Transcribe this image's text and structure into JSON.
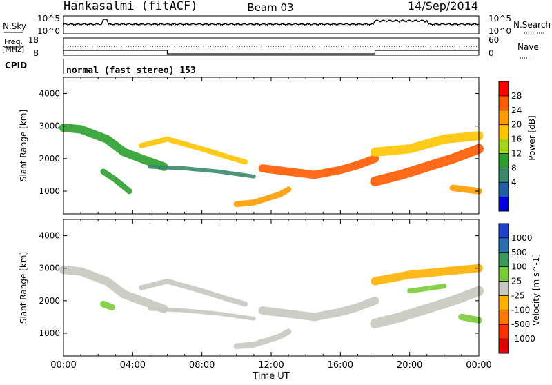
{
  "header": {
    "station": "Hankasalmi (fitACF)",
    "beam": "Beam 03",
    "date": "14/Sep/2014"
  },
  "top_panels": {
    "nsky_label": "N.Sky",
    "nsearch_label": "N.Search",
    "noise_ticks_left": [
      "10^5",
      "10^0"
    ],
    "noise_ticks_right": [
      "10^5",
      "10^0"
    ],
    "freq_label_line1": "Freq.",
    "freq_label_line2": "[MHz]",
    "freq_ticks": [
      "18",
      "8"
    ],
    "nave_label": "Nave",
    "nave_ticks": [
      "60",
      "0"
    ],
    "cpid_label": "CPID",
    "cpid_text": "normal (fast stereo) 153"
  },
  "x_axis": {
    "title": "Time UT",
    "ticks": [
      "00:00",
      "04:00",
      "08:00",
      "12:00",
      "16:00",
      "20:00",
      "00:00"
    ]
  },
  "chart_data": [
    {
      "type": "heatmap",
      "title": "Power",
      "ylabel": "Slant Range [km]",
      "xlabel": "Time UT",
      "xlim_hours": [
        0,
        24
      ],
      "ylim": [
        300,
        4500
      ],
      "yticks": [
        "4000",
        "3000",
        "2000",
        "1000"
      ],
      "colorbar": {
        "label": "Power [dB]",
        "ticks": [
          "28",
          "24",
          "20",
          "16",
          "12",
          "8",
          "4"
        ],
        "colors": [
          "#ff0000",
          "#ff5a00",
          "#ff9b00",
          "#ffc400",
          "#a6d41a",
          "#2ca02c",
          "#3a8a6a",
          "#1f5fa8",
          "#0000e0"
        ]
      },
      "bands": [
        {
          "points": [
            [
              0.0,
              2950
            ],
            [
              1.0,
              2900
            ],
            [
              2.5,
              2600
            ],
            [
              3.5,
              2200
            ],
            [
              4.5,
              2000
            ],
            [
              5.8,
              1750
            ]
          ],
          "width": 260,
          "value": 12
        },
        {
          "points": [
            [
              2.3,
              1600
            ],
            [
              3.0,
              1350
            ],
            [
              3.8,
              1000
            ]
          ],
          "width": 180,
          "value": 14
        },
        {
          "points": [
            [
              4.5,
              2400
            ],
            [
              6.0,
              2600
            ],
            [
              8.0,
              2300
            ],
            [
              9.5,
              2050
            ],
            [
              10.5,
              1900
            ]
          ],
          "width": 160,
          "value": 18
        },
        {
          "points": [
            [
              5.0,
              1750
            ],
            [
              7.0,
              1700
            ],
            [
              9.0,
              1600
            ],
            [
              11.0,
              1450
            ]
          ],
          "width": 120,
          "value": 10
        },
        {
          "points": [
            [
              10.0,
              600
            ],
            [
              11.0,
              650
            ],
            [
              12.5,
              900
            ],
            [
              13.0,
              1050
            ]
          ],
          "width": 180,
          "value": 22
        },
        {
          "points": [
            [
              11.5,
              1700
            ],
            [
              13.0,
              1600
            ],
            [
              14.5,
              1500
            ],
            [
              16.0,
              1650
            ],
            [
              17.0,
              1800
            ],
            [
              18.0,
              2000
            ]
          ],
          "width": 250,
          "value": 25
        },
        {
          "points": [
            [
              18.0,
              1300
            ],
            [
              19.5,
              1500
            ],
            [
              21.0,
              1750
            ],
            [
              22.5,
              2000
            ],
            [
              24.0,
              2300
            ]
          ],
          "width": 300,
          "value": 26
        },
        {
          "points": [
            [
              18.0,
              2200
            ],
            [
              20.0,
              2300
            ],
            [
              22.0,
              2600
            ],
            [
              24.0,
              2700
            ]
          ],
          "width": 280,
          "value": 20
        },
        {
          "points": [
            [
              22.5,
              1100
            ],
            [
              24.0,
              1000
            ]
          ],
          "width": 200,
          "value": 24
        }
      ]
    },
    {
      "type": "heatmap",
      "title": "Velocity",
      "ylabel": "Slant Range [km]",
      "xlabel": "Time UT",
      "xlim_hours": [
        0,
        24
      ],
      "ylim": [
        300,
        4500
      ],
      "yticks": [
        "4000",
        "3000",
        "2000",
        "1000"
      ],
      "colorbar": {
        "label": "Velocity [m s^-1]",
        "ticks": [
          "1000",
          "500",
          "100",
          "25",
          "-25",
          "-100",
          "-500",
          "-1000"
        ],
        "colors": [
          "#2040d0",
          "#2a6fb0",
          "#3a9a5a",
          "#7acc3a",
          "#c8c8c0",
          "#ffb000",
          "#ff7a00",
          "#ff3000",
          "#e00000"
        ]
      },
      "bands": [
        {
          "points": [
            [
              0.0,
              2950
            ],
            [
              1.0,
              2900
            ],
            [
              2.5,
              2600
            ],
            [
              3.5,
              2200
            ],
            [
              4.5,
              2000
            ],
            [
              5.8,
              1750
            ]
          ],
          "width": 260,
          "value": 0
        },
        {
          "points": [
            [
              2.3,
              1900
            ],
            [
              2.8,
              1800
            ]
          ],
          "width": 200,
          "value": 150
        },
        {
          "points": [
            [
              4.5,
              2400
            ],
            [
              6.0,
              2600
            ],
            [
              8.0,
              2300
            ],
            [
              9.5,
              2050
            ],
            [
              10.5,
              1900
            ]
          ],
          "width": 160,
          "value": 0
        },
        {
          "points": [
            [
              5.0,
              1750
            ],
            [
              7.0,
              1700
            ],
            [
              9.0,
              1600
            ],
            [
              11.0,
              1450
            ]
          ],
          "width": 120,
          "value": 0
        },
        {
          "points": [
            [
              10.0,
              600
            ],
            [
              11.0,
              650
            ],
            [
              12.5,
              900
            ],
            [
              13.0,
              1050
            ]
          ],
          "width": 180,
          "value": 0
        },
        {
          "points": [
            [
              11.5,
              1700
            ],
            [
              13.0,
              1600
            ],
            [
              14.5,
              1500
            ],
            [
              16.0,
              1650
            ],
            [
              17.0,
              1800
            ],
            [
              18.0,
              2000
            ]
          ],
          "width": 250,
          "value": 0
        },
        {
          "points": [
            [
              18.0,
              1300
            ],
            [
              19.5,
              1500
            ],
            [
              21.0,
              1750
            ],
            [
              22.5,
              2000
            ],
            [
              24.0,
              2300
            ]
          ],
          "width": 300,
          "value": 0
        },
        {
          "points": [
            [
              18.0,
              2600
            ],
            [
              20.0,
              2800
            ],
            [
              22.0,
              2900
            ],
            [
              24.0,
              3000
            ]
          ],
          "width": 250,
          "value": -300
        },
        {
          "points": [
            [
              20.0,
              2300
            ],
            [
              22.0,
              2450
            ]
          ],
          "width": 150,
          "value": 200
        },
        {
          "points": [
            [
              23.0,
              1500
            ],
            [
              24.0,
              1400
            ]
          ],
          "width": 200,
          "value": 150
        }
      ]
    }
  ]
}
